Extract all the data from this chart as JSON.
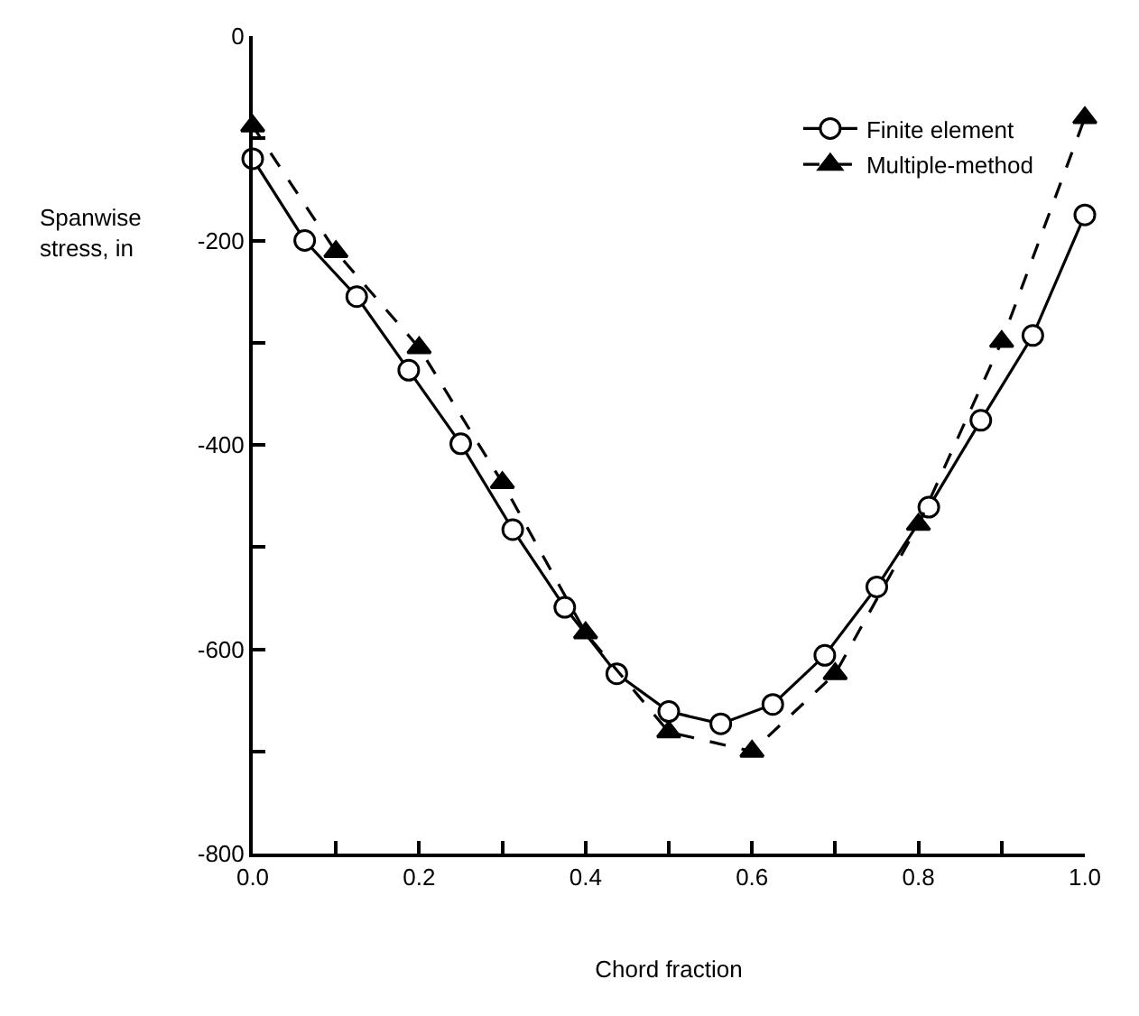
{
  "chart_data": {
    "type": "line",
    "xlabel": "Chord fraction",
    "ylabel": "Spanwise\nstress, in",
    "xlim": [
      0,
      1.0
    ],
    "ylim": [
      -800,
      0
    ],
    "xticks": [
      {
        "value": 0,
        "label": "0.0"
      },
      {
        "value": 0.1,
        "label": null
      },
      0.2,
      {
        "value": 0.3,
        "label": null
      },
      0.4,
      {
        "value": 0.5,
        "label": null
      },
      0.6,
      {
        "value": 0.7,
        "label": null
      },
      0.8,
      {
        "value": 0.9,
        "label": null
      },
      {
        "value": 1.0,
        "label": "1.0"
      }
    ],
    "yticks": [
      -800,
      {
        "value": -700,
        "label": null
      },
      -600,
      {
        "value": -500,
        "label": null
      },
      -400,
      {
        "value": -300,
        "label": null
      },
      -200,
      {
        "value": -100,
        "label": null
      },
      0
    ],
    "legend": "top right",
    "series": [
      {
        "name": "Finite element",
        "color": "#000000",
        "marker": "circle",
        "line_style": "solid",
        "x": [
          0,
          0.0625,
          0.125,
          0.1875,
          0.25,
          0.3125,
          0.375,
          0.4375,
          0.5,
          0.5625,
          0.625,
          0.6875,
          0.75,
          0.8125,
          0.875,
          0.9375,
          1.0
        ],
        "values": [
          -120,
          -200,
          -255,
          -327,
          -399,
          -483,
          -559,
          -624,
          -661,
          -673,
          -654,
          -606,
          -539,
          -461,
          -376,
          -293,
          -175
        ]
      },
      {
        "name": "Multiple-method",
        "color": "#000000",
        "marker": "triangle",
        "line_style": "dashed",
        "x": [
          0,
          0.1,
          0.2,
          0.3,
          0.4,
          0.5,
          0.6,
          0.7,
          0.8,
          0.9,
          1.0
        ],
        "values": [
          -88,
          -211,
          -305,
          -437,
          -584,
          -681,
          -700,
          -624,
          -478,
          -299,
          -80
        ]
      }
    ]
  }
}
